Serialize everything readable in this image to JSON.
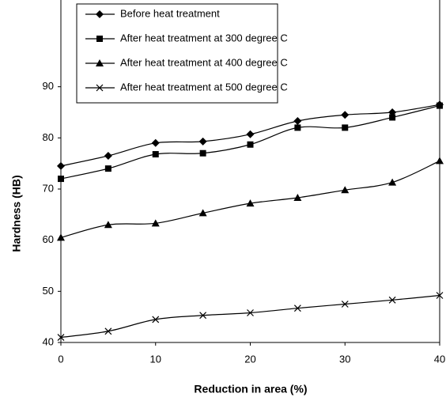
{
  "chart_data": {
    "type": "line",
    "xlabel": "Reduction in area (%)",
    "ylabel": "Hardness (HB)",
    "x": [
      0,
      5,
      10,
      15,
      20,
      25,
      30,
      35,
      40
    ],
    "xlim": [
      0,
      40
    ],
    "xticks": [
      0,
      10,
      20,
      30,
      40
    ],
    "ylim": [
      40,
      100
    ],
    "yticks": [
      40,
      50,
      60,
      70,
      80,
      90
    ],
    "legend": "top-left",
    "series": [
      {
        "name": "Before heat treatment",
        "color": "#000000",
        "marker": "diamond",
        "values": [
          74.5,
          76.5,
          79,
          79.3,
          80.7,
          83.3,
          84.5,
          85,
          86.5
        ]
      },
      {
        "name": "After heat treatment at 300 degree C",
        "color": "#000000",
        "marker": "square",
        "values": [
          72,
          74,
          76.8,
          77,
          78.7,
          82,
          82,
          84,
          86.3
        ]
      },
      {
        "name": "After heat treatment at 400 degree C",
        "color": "#000000",
        "marker": "triangle",
        "values": [
          60.5,
          63,
          63.3,
          65.3,
          67.2,
          68.3,
          69.8,
          71.3,
          75.5
        ]
      },
      {
        "name": "After heat treatment at 500 degree C",
        "color": "#000000",
        "marker": "cross",
        "values": [
          41,
          42.2,
          44.5,
          45.3,
          45.8,
          46.7,
          47.5,
          48.3,
          49.2
        ]
      }
    ]
  }
}
